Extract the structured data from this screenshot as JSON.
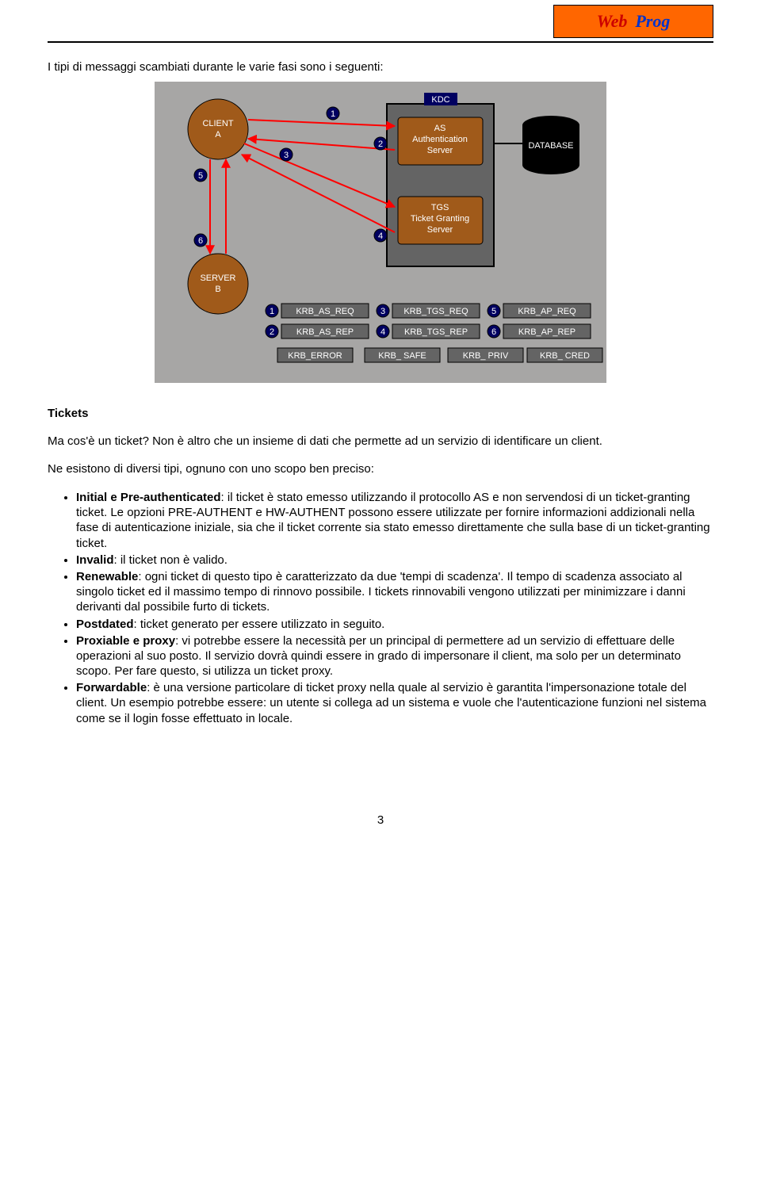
{
  "logo": {
    "word1": "Web",
    "word2": "Prog"
  },
  "intro": "I tipi di messaggi scambiati durante le varie fasi sono i seguenti:",
  "diagram": {
    "background": "#a7a6a5",
    "nodes": {
      "client": {
        "label1": "CLIENT",
        "label2": "A",
        "fill": "#a05a1a",
        "stroke": "#000000",
        "textColor": "#ffffff"
      },
      "server": {
        "label1": "SERVER",
        "label2": "B",
        "fill": "#a05a1a",
        "stroke": "#000000",
        "textColor": "#ffffff"
      },
      "kdc": {
        "label": "KDC",
        "fill": "#000060",
        "textColor": "#ffffff"
      },
      "as": {
        "line1": "AS",
        "line2": "Authentication",
        "line3": "Server",
        "fill": "#a05a1a",
        "textColor": "#ffffff"
      },
      "tgs": {
        "line1": "TGS",
        "line2": "Ticket Granting",
        "line3": "Server",
        "fill": "#a05a1a",
        "textColor": "#ffffff"
      },
      "db": {
        "label": "DATABASE",
        "fill": "#000000",
        "textColor": "#ffffff"
      },
      "kdcFrame": {
        "fill": "#646464",
        "stroke": "#000000"
      }
    },
    "arrowColor": "#ff0000",
    "badge": {
      "fill": "#000060",
      "stroke": "#000000",
      "textColor": "#ffffff"
    },
    "edgeBadges": [
      "1",
      "2",
      "3",
      "4",
      "5",
      "6"
    ],
    "legendBox": {
      "fill": "#646464",
      "stroke": "#000000",
      "textColor": "#ffffff"
    },
    "legend": [
      {
        "n": "1",
        "text": "KRB_AS_REQ"
      },
      {
        "n": "3",
        "text": "KRB_TGS_REQ"
      },
      {
        "n": "5",
        "text": "KRB_AP_REQ"
      },
      {
        "n": "2",
        "text": "KRB_AS_REP"
      },
      {
        "n": "4",
        "text": "KRB_TGS_REP"
      },
      {
        "n": "6",
        "text": "KRB_AP_REP"
      }
    ],
    "legendRow3": [
      "KRB_ERROR",
      "KRB_ SAFE",
      "KRB_ PRIV",
      "KRB_ CRED"
    ]
  },
  "section": {
    "title": "Tickets",
    "q": "Ma cos'è un ticket? Non è altro che un insieme di dati che permette ad un servizio di identificare un client.",
    "lead": "Ne esistono di diversi tipi, ognuno con uno scopo ben preciso:"
  },
  "items": [
    {
      "term": "Initial e Pre-authenticated",
      "body": ": il ticket è stato emesso utilizzando il protocollo AS e non servendosi di un ticket-granting ticket. Le opzioni PRE-AUTHENT e HW-AUTHENT possono essere utilizzate per fornire informazioni addizionali nella fase di autenticazione iniziale, sia che il ticket corrente sia stato emesso direttamente che sulla base di un ticket-granting ticket."
    },
    {
      "term": "Invalid",
      "body": ": il ticket non è valido."
    },
    {
      "term": "Renewable",
      "body": ": ogni ticket di questo tipo è caratterizzato da due 'tempi di scadenza'. Il tempo di scadenza associato al singolo ticket ed il massimo tempo di rinnovo possibile. I tickets rinnovabili vengono utilizzati per minimizzare i danni derivanti dal possibile furto di tickets."
    },
    {
      "term": "Postdated",
      "body": ": ticket generato per essere utilizzato in seguito."
    },
    {
      "term": "Proxiable e proxy",
      "body": ": vi potrebbe essere la necessità per un principal di permettere ad un servizio di effettuare delle operazioni al suo posto. Il servizio dovrà quindi essere in grado di impersonare il client, ma solo per un determinato scopo. Per fare questo, si utilizza un ticket proxy."
    },
    {
      "term": "Forwardable",
      "body": ": è una versione particolare di ticket proxy nella quale al servizio è garantita l'impersonazione totale del client. Un esempio potrebbe essere: un utente si collega ad un sistema e vuole che l'autenticazione funzioni nel sistema come se il login fosse effettuato in locale."
    }
  ],
  "pageNumber": "3"
}
